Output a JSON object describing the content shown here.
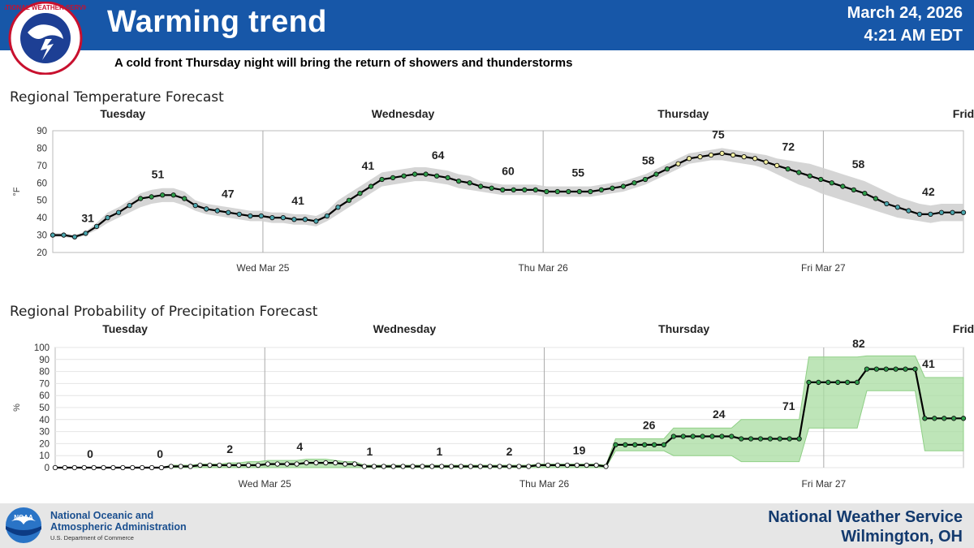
{
  "header": {
    "title": "Warming trend",
    "date": "March 24, 2026",
    "time": "4:21 AM EDT",
    "subtitle": "A cold front Thursday night will bring the return of showers and thunderstorms",
    "band_color": "#1757a8",
    "logo_text": "NATIONAL WEATHER SERVICE"
  },
  "footer": {
    "agency_line1": "National Oceanic and",
    "agency_line2": "Atmospheric Administration",
    "department": "U.S. Department of Commerce",
    "office": "National Weather Service",
    "location": "Wilmington, OH",
    "logo_text": "NOAA"
  },
  "chart_data": [
    {
      "type": "line",
      "title": "Regional Temperature Forecast",
      "ylabel": "°F",
      "ylim": [
        20,
        90
      ],
      "yticks": [
        20,
        30,
        40,
        50,
        60,
        70,
        80,
        90
      ],
      "xlim_hours": [
        0,
        78
      ],
      "day_labels": [
        {
          "label": "Tuesday",
          "hour": 6
        },
        {
          "label": "Wednesday",
          "hour": 30
        },
        {
          "label": "Thursday",
          "hour": 54
        },
        {
          "label": "Frid",
          "hour": 78
        }
      ],
      "x_ticks": [
        {
          "label": "Wed Mar 25",
          "hour": 18
        },
        {
          "label": "Thu Mar 26",
          "hour": 42
        },
        {
          "label": "Fri Mar 27",
          "hour": 66
        }
      ],
      "series": [
        {
          "values": [
            30,
            30,
            29,
            31,
            35,
            40,
            43,
            47,
            51,
            52,
            53,
            53,
            51,
            47,
            45,
            44,
            43,
            42,
            41,
            41,
            40,
            40,
            39,
            39,
            38,
            41,
            46,
            50,
            54,
            58,
            62,
            63,
            64,
            65,
            65,
            64,
            63,
            61,
            60,
            58,
            57,
            56,
            56,
            56,
            56,
            55,
            55,
            55,
            55,
            55,
            56,
            57,
            58,
            60,
            62,
            65,
            68,
            71,
            74,
            75,
            76,
            77,
            76,
            75,
            74,
            72,
            70,
            68,
            66,
            64,
            62,
            60,
            58,
            56,
            54,
            51,
            48,
            46,
            44,
            42,
            42,
            43,
            43,
            43
          ],
          "range_low": [
            29,
            29,
            28,
            30,
            33,
            37,
            40,
            43,
            46,
            48,
            49,
            49,
            47,
            44,
            42,
            41,
            40,
            39,
            38,
            38,
            37,
            37,
            36,
            36,
            35,
            38,
            42,
            46,
            50,
            54,
            58,
            59,
            60,
            61,
            61,
            60,
            59,
            57,
            56,
            55,
            54,
            53,
            53,
            53,
            53,
            52,
            52,
            52,
            52,
            52,
            53,
            54,
            55,
            57,
            59,
            62,
            65,
            68,
            71,
            72,
            73,
            73,
            72,
            71,
            70,
            68,
            65,
            62,
            59,
            57,
            54,
            52,
            50,
            48,
            46,
            44,
            42,
            40,
            39,
            38,
            37,
            38,
            38,
            38
          ],
          "range_high": [
            31,
            31,
            30,
            32,
            37,
            43,
            46,
            50,
            54,
            56,
            57,
            57,
            55,
            50,
            48,
            47,
            46,
            45,
            44,
            44,
            43,
            43,
            42,
            42,
            41,
            44,
            50,
            54,
            58,
            62,
            66,
            67,
            68,
            69,
            69,
            68,
            67,
            65,
            64,
            61,
            60,
            59,
            59,
            59,
            59,
            58,
            58,
            58,
            58,
            58,
            59,
            60,
            61,
            63,
            65,
            68,
            71,
            74,
            77,
            78,
            79,
            80,
            79,
            78,
            77,
            76,
            74,
            73,
            72,
            71,
            69,
            67,
            65,
            63,
            61,
            58,
            55,
            52,
            50,
            48,
            47,
            48,
            48,
            48
          ]
        }
      ],
      "data_labels": [
        {
          "hour": 3,
          "label": "31"
        },
        {
          "hour": 9,
          "label": "51"
        },
        {
          "hour": 15,
          "label": "47"
        },
        {
          "hour": 21,
          "label": "41"
        },
        {
          "hour": 27,
          "label": "41"
        },
        {
          "hour": 33,
          "label": "64"
        },
        {
          "hour": 39,
          "label": "60"
        },
        {
          "hour": 45,
          "label": "55"
        },
        {
          "hour": 51,
          "label": "58"
        },
        {
          "hour": 57,
          "label": "75"
        },
        {
          "hour": 63,
          "label": "72"
        },
        {
          "hour": 69,
          "label": "58"
        },
        {
          "hour": 75,
          "label": "42"
        }
      ],
      "grid": false,
      "line_color": "#000000",
      "band_color": "#d0d0d0"
    },
    {
      "type": "line",
      "title": "Regional Probability of Precipitation Forecast",
      "ylabel": "%",
      "ylim": [
        0,
        100
      ],
      "yticks": [
        0,
        10,
        20,
        30,
        40,
        50,
        60,
        70,
        80,
        90,
        100
      ],
      "xlim_hours": [
        0,
        78
      ],
      "day_labels": [
        {
          "label": "Tuesday",
          "hour": 6
        },
        {
          "label": "Wednesday",
          "hour": 30
        },
        {
          "label": "Thursday",
          "hour": 54
        },
        {
          "label": "Frid",
          "hour": 78
        }
      ],
      "x_ticks": [
        {
          "label": "Wed Mar 25",
          "hour": 18
        },
        {
          "label": "Thu Mar 26",
          "hour": 42
        },
        {
          "label": "Fri Mar 27",
          "hour": 66
        }
      ],
      "series": [
        {
          "values": [
            0,
            0,
            0,
            0,
            0,
            0,
            0,
            0,
            0,
            0,
            0,
            0,
            1,
            1,
            1,
            2,
            2,
            2,
            2,
            2,
            2,
            2,
            3,
            3,
            3,
            3,
            4,
            4,
            4,
            4,
            3,
            3,
            1,
            1,
            1,
            1,
            1,
            1,
            1,
            1,
            1,
            1,
            1,
            1,
            1,
            1,
            1,
            1,
            1,
            1,
            2,
            2,
            2,
            2,
            2,
            2,
            2,
            1,
            19,
            19,
            19,
            19,
            19,
            19,
            26,
            26,
            26,
            26,
            26,
            26,
            26,
            24,
            24,
            24,
            24,
            24,
            24,
            24,
            71,
            71,
            71,
            71,
            71,
            71,
            82,
            82,
            82,
            82,
            82,
            82,
            41,
            41,
            41,
            41,
            41
          ],
          "range_low": [
            0,
            0,
            0,
            0,
            0,
            0,
            0,
            0,
            0,
            0,
            0,
            0,
            0,
            0,
            0,
            0,
            0,
            0,
            0,
            0,
            0,
            0,
            0,
            0,
            0,
            0,
            0,
            0,
            0,
            0,
            0,
            0,
            0,
            0,
            0,
            0,
            0,
            0,
            0,
            0,
            0,
            0,
            0,
            0,
            0,
            0,
            0,
            0,
            0,
            0,
            0,
            0,
            0,
            0,
            0,
            0,
            0,
            0,
            14,
            14,
            14,
            14,
            14,
            14,
            10,
            10,
            10,
            10,
            10,
            10,
            10,
            5,
            5,
            5,
            5,
            5,
            5,
            5,
            33,
            33,
            33,
            33,
            33,
            33,
            64,
            64,
            64,
            64,
            64,
            64,
            14,
            14,
            14,
            14,
            14
          ],
          "range_high": [
            0,
            0,
            0,
            0,
            0,
            0,
            0,
            0,
            0,
            0,
            0,
            0,
            2,
            2,
            2,
            3,
            3,
            3,
            4,
            4,
            5,
            5,
            6,
            6,
            6,
            6,
            7,
            7,
            7,
            6,
            5,
            5,
            2,
            2,
            2,
            2,
            2,
            2,
            2,
            2,
            2,
            2,
            2,
            2,
            2,
            2,
            2,
            2,
            2,
            2,
            3,
            3,
            3,
            3,
            3,
            3,
            3,
            2,
            24,
            24,
            24,
            24,
            24,
            24,
            33,
            33,
            33,
            33,
            33,
            33,
            33,
            40,
            40,
            40,
            40,
            40,
            40,
            40,
            92,
            92,
            92,
            92,
            92,
            92,
            93,
            93,
            93,
            93,
            93,
            93,
            75,
            75,
            75,
            75,
            75
          ]
        }
      ],
      "data_labels": [
        {
          "hour": 3,
          "label": "0"
        },
        {
          "hour": 9,
          "label": "0"
        },
        {
          "hour": 15,
          "label": "2"
        },
        {
          "hour": 21,
          "label": "4"
        },
        {
          "hour": 27,
          "label": "1"
        },
        {
          "hour": 33,
          "label": "1"
        },
        {
          "hour": 39,
          "label": "2"
        },
        {
          "hour": 45,
          "label": "19"
        },
        {
          "hour": 51,
          "label": "26"
        },
        {
          "hour": 57,
          "label": "24"
        },
        {
          "hour": 63,
          "label": "71"
        },
        {
          "hour": 69,
          "label": "82"
        },
        {
          "hour": 75,
          "label": "41"
        }
      ],
      "grid": true,
      "line_color": "#000000",
      "band_color": "#a8dca0"
    }
  ]
}
